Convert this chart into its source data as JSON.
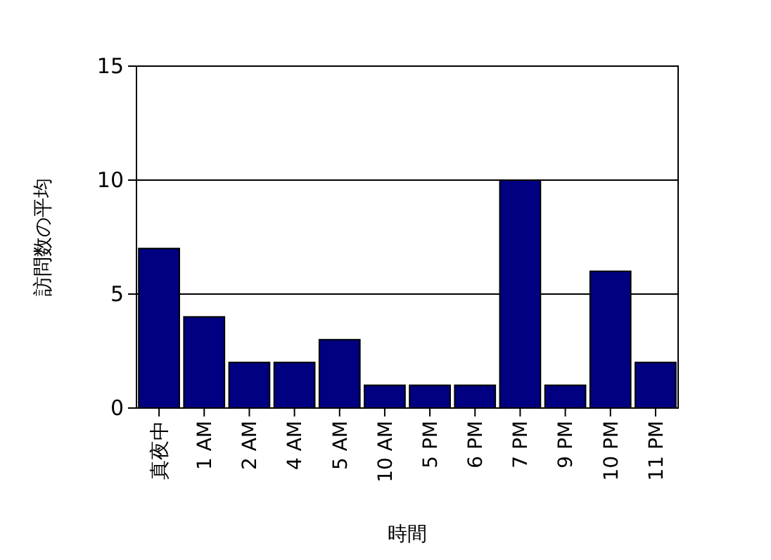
{
  "chart_data": {
    "type": "bar",
    "xlabel": "時間",
    "ylabel": "訪問数の平均",
    "categories": [
      "真夜中",
      "1 AM",
      "2 AM",
      "4 AM",
      "5 AM",
      "10 AM",
      "5 PM",
      "6 PM",
      "7 PM",
      "9 PM",
      "10 PM",
      "11 PM"
    ],
    "values": [
      7,
      4,
      2,
      2,
      3,
      1,
      1,
      1,
      10,
      1,
      6,
      2
    ],
    "color": "#000080",
    "ylim": [
      0,
      15
    ],
    "yticks": [
      0,
      5,
      10,
      15
    ],
    "grid": "y"
  }
}
